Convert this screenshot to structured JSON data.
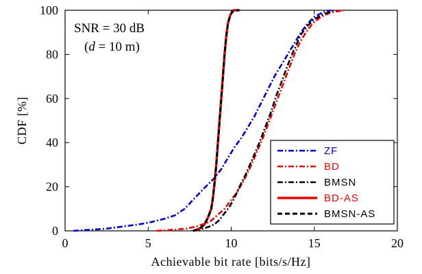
{
  "chart_data": {
    "type": "line",
    "title": "",
    "xlabel": "Achievable bit rate [bits/s/Hz]",
    "ylabel": "CDF [%]",
    "xlim": [
      0,
      20
    ],
    "ylim": [
      0,
      100
    ],
    "xticks": [
      "0",
      "5",
      "10",
      "15",
      "20"
    ],
    "yticks": [
      "0",
      "20",
      "40",
      "60",
      "80",
      "100"
    ],
    "grid": false,
    "legend_position": "bottom-right",
    "annotations": [
      {
        "text": "SNR = 30 dB"
      },
      {
        "text": "(d = 10 m)"
      }
    ],
    "series": [
      {
        "name": "ZF",
        "color": "#0000cc",
        "style": "dashdot",
        "points": [
          [
            0.5,
            0
          ],
          [
            1.5,
            0.5
          ],
          [
            2.5,
            1
          ],
          [
            3.5,
            2
          ],
          [
            4.5,
            3
          ],
          [
            5.2,
            4
          ],
          [
            6,
            5.5
          ],
          [
            6.6,
            7
          ],
          [
            7.2,
            10
          ],
          [
            7.7,
            14
          ],
          [
            8.2,
            18
          ],
          [
            8.6,
            21
          ],
          [
            9.0,
            24
          ],
          [
            9.4,
            28
          ],
          [
            9.8,
            33
          ],
          [
            10.2,
            38
          ],
          [
            10.6,
            42
          ],
          [
            11.0,
            47
          ],
          [
            11.4,
            52
          ],
          [
            11.8,
            58
          ],
          [
            12.2,
            64
          ],
          [
            12.6,
            70
          ],
          [
            13.0,
            75
          ],
          [
            13.4,
            80
          ],
          [
            13.8,
            85
          ],
          [
            14.2,
            90
          ],
          [
            14.6,
            94
          ],
          [
            15.0,
            97
          ],
          [
            15.5,
            99
          ],
          [
            16.0,
            100
          ]
        ]
      },
      {
        "name": "BD",
        "color": "#ee0000",
        "style": "dashdot",
        "points": [
          [
            5.5,
            0
          ],
          [
            6.5,
            0.5
          ],
          [
            7.3,
            1
          ],
          [
            7.9,
            2
          ],
          [
            8.3,
            3
          ],
          [
            8.7,
            4
          ],
          [
            9.0,
            6
          ],
          [
            9.3,
            8
          ],
          [
            9.6,
            10
          ],
          [
            9.9,
            13
          ],
          [
            10.3,
            17
          ],
          [
            10.7,
            22
          ],
          [
            11.1,
            28
          ],
          [
            11.5,
            35
          ],
          [
            11.9,
            42
          ],
          [
            12.3,
            50
          ],
          [
            12.6,
            56
          ],
          [
            12.9,
            62
          ],
          [
            13.2,
            68
          ],
          [
            13.5,
            74
          ],
          [
            13.8,
            80
          ],
          [
            14.1,
            85
          ],
          [
            14.5,
            90
          ],
          [
            14.9,
            94
          ],
          [
            15.4,
            97
          ],
          [
            16.0,
            99
          ],
          [
            16.8,
            100
          ]
        ]
      },
      {
        "name": "BMSN",
        "color": "#000000",
        "style": "dashdot",
        "points": [
          [
            7.8,
            0
          ],
          [
            8.3,
            1
          ],
          [
            8.7,
            2
          ],
          [
            9.0,
            3
          ],
          [
            9.3,
            5
          ],
          [
            9.6,
            8
          ],
          [
            9.9,
            11
          ],
          [
            10.2,
            15
          ],
          [
            10.5,
            20
          ],
          [
            10.9,
            26
          ],
          [
            11.3,
            33
          ],
          [
            11.7,
            40
          ],
          [
            12.1,
            48
          ],
          [
            12.4,
            54
          ],
          [
            12.7,
            61
          ],
          [
            13.0,
            67
          ],
          [
            13.3,
            73
          ],
          [
            13.6,
            79
          ],
          [
            13.9,
            84
          ],
          [
            14.2,
            89
          ],
          [
            14.6,
            93
          ],
          [
            15.0,
            96
          ],
          [
            15.5,
            98
          ],
          [
            16.2,
            100
          ]
        ]
      },
      {
        "name": "BD-AS",
        "color": "#ee0000",
        "style": "solid",
        "points": [
          [
            7.7,
            0
          ],
          [
            8.1,
            1
          ],
          [
            8.4,
            3
          ],
          [
            8.6,
            6
          ],
          [
            8.8,
            10
          ],
          [
            8.9,
            15
          ],
          [
            9.0,
            22
          ],
          [
            9.1,
            30
          ],
          [
            9.2,
            40
          ],
          [
            9.3,
            50
          ],
          [
            9.4,
            60
          ],
          [
            9.5,
            70
          ],
          [
            9.6,
            80
          ],
          [
            9.7,
            88
          ],
          [
            9.8,
            94
          ],
          [
            9.95,
            98
          ],
          [
            10.15,
            100
          ],
          [
            10.5,
            100
          ]
        ]
      },
      {
        "name": "BMSN-AS",
        "color": "#000000",
        "style": "dashed",
        "points": [
          [
            7.7,
            0
          ],
          [
            8.1,
            1
          ],
          [
            8.4,
            3
          ],
          [
            8.6,
            6
          ],
          [
            8.8,
            10
          ],
          [
            8.9,
            15
          ],
          [
            9.0,
            22
          ],
          [
            9.1,
            30
          ],
          [
            9.2,
            40
          ],
          [
            9.3,
            50
          ],
          [
            9.4,
            60
          ],
          [
            9.5,
            70
          ],
          [
            9.6,
            80
          ],
          [
            9.7,
            88
          ],
          [
            9.8,
            94
          ],
          [
            9.95,
            98
          ],
          [
            10.15,
            100
          ],
          [
            10.5,
            100
          ]
        ]
      }
    ]
  }
}
